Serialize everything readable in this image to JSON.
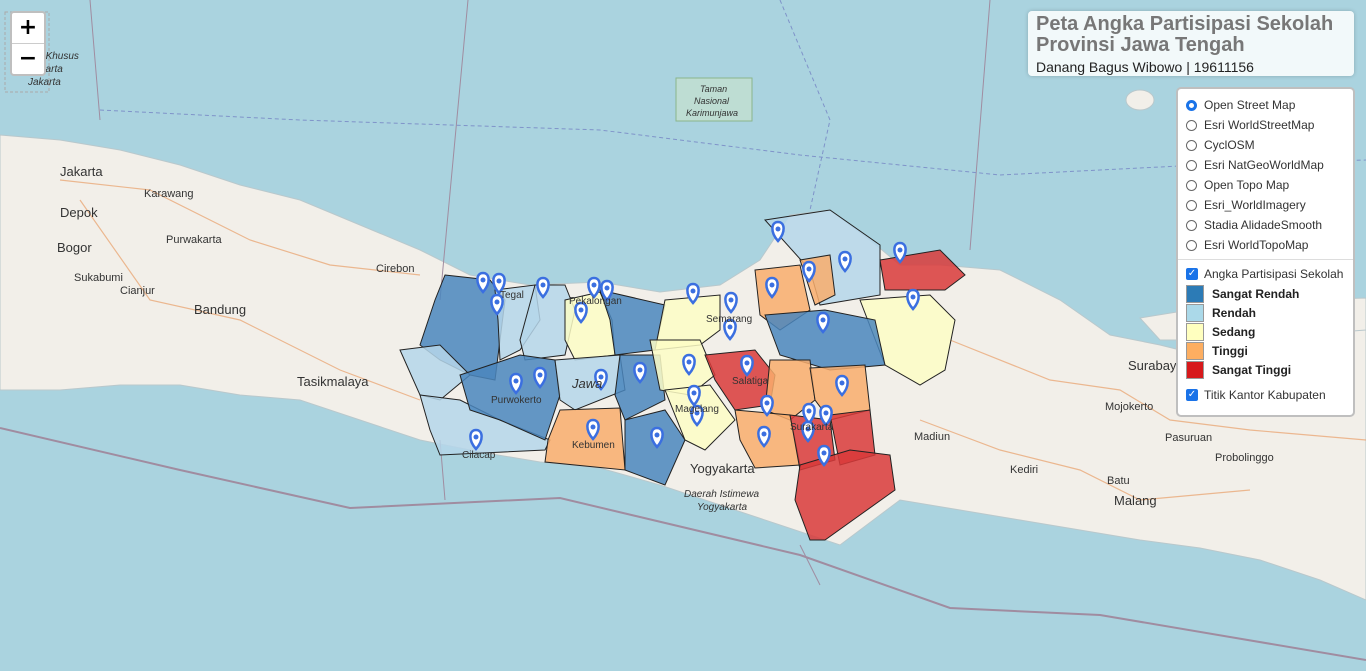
{
  "map": {
    "place_labels": [
      {
        "id": "jakarta",
        "text": "Jakarta"
      },
      {
        "id": "depok",
        "text": "Depok"
      },
      {
        "id": "bogor",
        "text": "Bogor"
      },
      {
        "id": "karawang",
        "text": "Karawang"
      },
      {
        "id": "purwakarta",
        "text": "Purwakarta"
      },
      {
        "id": "cianjur",
        "text": "Cianjur"
      },
      {
        "id": "sukabumi",
        "text": "Sukabumi"
      },
      {
        "id": "bandung",
        "text": "Bandung"
      },
      {
        "id": "tasikmalaya",
        "text": "Tasikmalaya"
      },
      {
        "id": "cirebon",
        "text": "Cirebon"
      },
      {
        "id": "yogyakarta",
        "text": "Yogyakarta"
      },
      {
        "id": "surabaya",
        "text": "Surabaya"
      },
      {
        "id": "mojokerto",
        "text": "Mojokerto"
      },
      {
        "id": "pasuruan",
        "text": "Pasuruan"
      },
      {
        "id": "probolinggo",
        "text": "Probolinggo"
      },
      {
        "id": "kediri",
        "text": "Kediri"
      },
      {
        "id": "batu",
        "text": "Batu"
      },
      {
        "id": "malang",
        "text": "Malang"
      },
      {
        "id": "madiun",
        "text": "Madiun"
      },
      {
        "id": "purwokerto",
        "text": "Purwokerto"
      },
      {
        "id": "cilacap",
        "text": "Cilacap"
      },
      {
        "id": "kebumen",
        "text": "Kebumen"
      },
      {
        "id": "magelang",
        "text": "Magelang"
      },
      {
        "id": "salatiga",
        "text": "Salatiga"
      },
      {
        "id": "semarang",
        "text": "Semarang"
      },
      {
        "id": "surakarta",
        "text": "Surakarta"
      },
      {
        "id": "pekalongan",
        "text": "Pekalongan"
      },
      {
        "id": "tegal",
        "text": "Tegal"
      },
      {
        "id": "jawa",
        "text": "Jawa"
      }
    ],
    "area_labels": {
      "jakarta_special_1": "Daerah Khusus",
      "jakarta_special_2": "Jakarta",
      "jakarta_special_3": "Jakarta",
      "karimunjawa_1": "Taman",
      "karimunjawa_2": "Nasional",
      "karimunjawa_3": "Karimunjawa",
      "diy_1": "Daerah Istimewa",
      "diy_2": "Yogyakarta"
    }
  },
  "zoom": {
    "in": "+",
    "out": "−"
  },
  "title": {
    "line1": "Peta Angka Partisipasi Sekolah",
    "line2": "Provinsi Jawa Tengah",
    "author": "Danang Bagus Wibowo | 19611156"
  },
  "layer_control": {
    "base_layers": [
      {
        "label": "Open Street Map",
        "selected": true
      },
      {
        "label": "Esri WorldStreetMap",
        "selected": false
      },
      {
        "label": "CyclOSM",
        "selected": false
      },
      {
        "label": "Esri NatGeoWorldMap",
        "selected": false
      },
      {
        "label": "Open Topo Map",
        "selected": false
      },
      {
        "label": "Esri_WorldImagery",
        "selected": false
      },
      {
        "label": "Stadia AlidadeSmooth",
        "selected": false
      },
      {
        "label": "Esri WorldTopoMap",
        "selected": false
      }
    ],
    "overlay_aps": {
      "label": "Angka Partisipasi Sekolah",
      "checked": true
    },
    "legend": [
      {
        "label": "Sangat Rendah",
        "color": "#2c7bb6"
      },
      {
        "label": "Rendah",
        "color": "#abd9e9"
      },
      {
        "label": "Sedang",
        "color": "#ffffbf"
      },
      {
        "label": "Tinggi",
        "color": "#fdae61"
      },
      {
        "label": "Sangat Tinggi",
        "color": "#d7191c"
      }
    ],
    "overlay_kantor": {
      "label": "Titik Kantor Kabupaten",
      "checked": true
    }
  },
  "colors": {
    "sea": "#aad3df",
    "land": "#f2efe9",
    "marker": "#3b6fe0",
    "sangat_rendah": "#4a86bd",
    "rendah": "#b5d6ea",
    "sedang": "#fdfdc5",
    "tinggi": "#f9ad6c",
    "sangat_tinggi": "#d93a3a"
  }
}
